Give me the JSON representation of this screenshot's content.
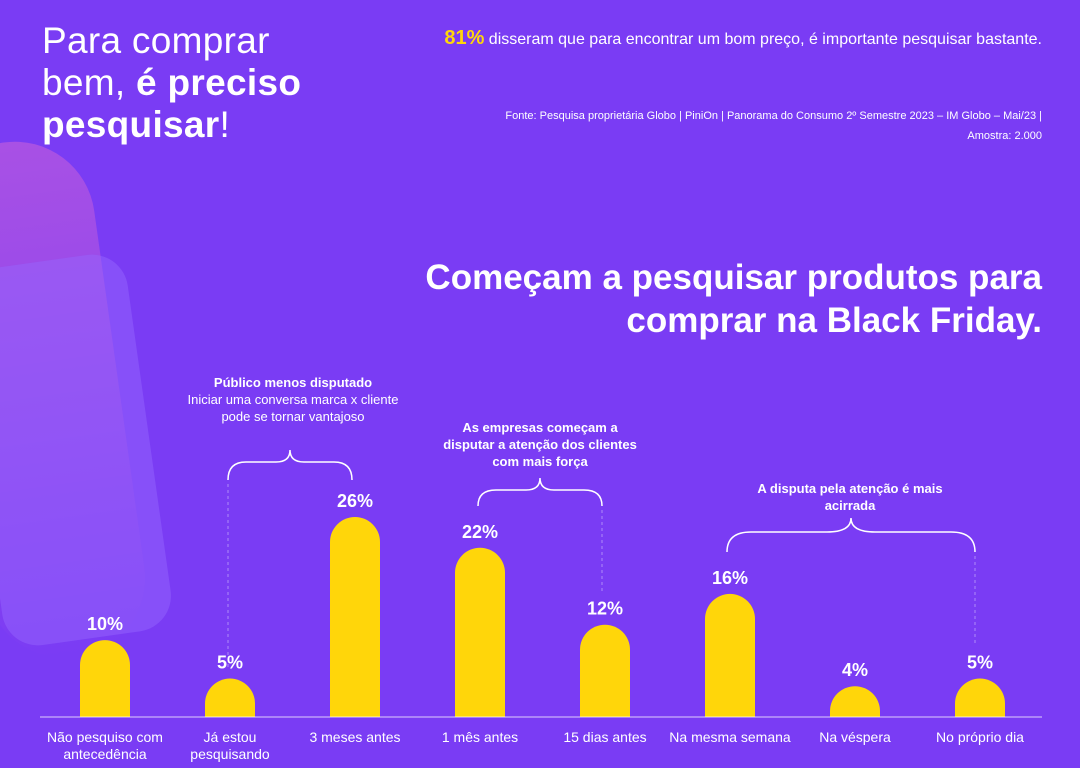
{
  "header": {
    "line1": "Para comprar",
    "line2_regular": "bem, ",
    "line2_bold": "é preciso",
    "line3_bold": "pesquisar",
    "line3_tail": "!"
  },
  "stat": {
    "percent": "81%",
    "text": " disseram que para encontrar um bom preço, é importante pesquisar bastante."
  },
  "source": {
    "line1": "Fonte: Pesquisa proprietária Globo | PiniOn | Panorama do Consumo 2º Semestre 2023 – IM Globo – Mai/23 |",
    "line2": "Amostra: 2.000"
  },
  "annotations": [
    {
      "bold": "Público menos disputado",
      "text": "Iniciar uma conversa marca x cliente pode se tornar vantajoso"
    },
    {
      "bold": "As empresas começam a disputar a atenção dos clientes com mais força",
      "text": ""
    },
    {
      "bold": "A disputa pela atenção é mais acirrada",
      "text": ""
    }
  ],
  "colors": {
    "background": "#7a3cf4",
    "bar": "#ffd60a",
    "text": "#ffffff"
  },
  "chart_data": {
    "type": "bar",
    "title": "Começam a pesquisar produtos para comprar na Black Friday.",
    "categories": [
      "Não pesquiso com antecedência",
      "Já estou pesquisando",
      "3 meses antes",
      "1 mês antes",
      "15 dias antes",
      "Na mesma semana",
      "Na véspera",
      "No próprio dia"
    ],
    "values": [
      10,
      5,
      26,
      22,
      12,
      16,
      4,
      5
    ],
    "labels": [
      "10%",
      "5%",
      "26%",
      "22%",
      "12%",
      "16%",
      "4%",
      "5%"
    ],
    "unit": "%",
    "grid": false,
    "legend": "none"
  }
}
